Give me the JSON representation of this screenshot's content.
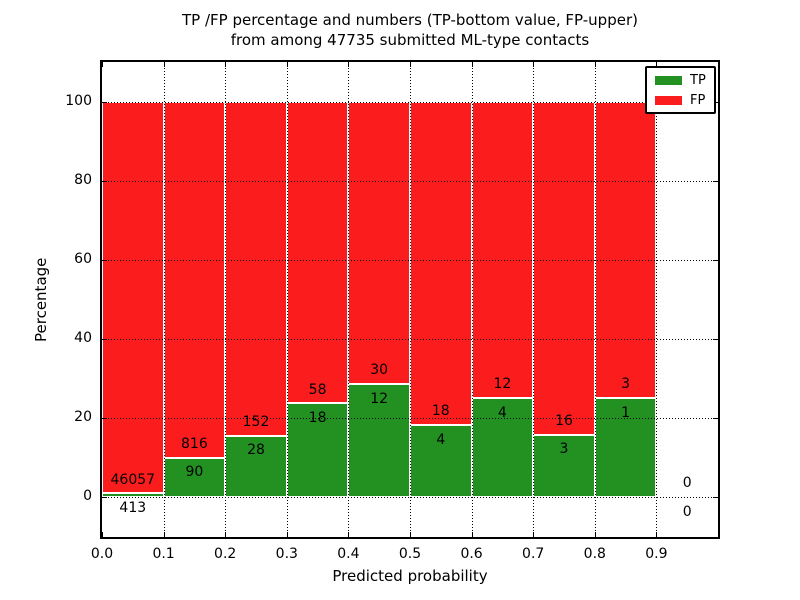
{
  "figure": {
    "title_line1": "TP /FP percentage and numbers (TP-bottom value, FP-upper)",
    "title_line2": "from among 47735 submitted ML-type contacts"
  },
  "chart_data": {
    "type": "bar",
    "stacked": true,
    "title": "TP /FP percentage and numbers (TP-bottom value, FP-upper) from among 47735 submitted ML-type contacts",
    "xlabel": "Predicted probability",
    "ylabel": "Percentage",
    "xlim": [
      0.0,
      1.0
    ],
    "ylim": [
      -10.6,
      110.6
    ],
    "xtick_labels": [
      "0.0",
      "0.1",
      "0.2",
      "0.3",
      "0.4",
      "0.5",
      "0.6",
      "0.7",
      "0.8",
      "0.9"
    ],
    "yticks": [
      0,
      20,
      40,
      60,
      80,
      100
    ],
    "grid": "dotted black, both axes, drawn over bars",
    "total_contacts": 47735,
    "bins": [
      {
        "x0": 0.0,
        "x1": 0.1,
        "tp": 413,
        "fp": 46057,
        "tp_pct": 0.89
      },
      {
        "x0": 0.1,
        "x1": 0.2,
        "tp": 90,
        "fp": 816,
        "tp_pct": 9.93
      },
      {
        "x0": 0.2,
        "x1": 0.3,
        "tp": 28,
        "fp": 152,
        "tp_pct": 15.56
      },
      {
        "x0": 0.3,
        "x1": 0.4,
        "tp": 18,
        "fp": 58,
        "tp_pct": 23.68
      },
      {
        "x0": 0.4,
        "x1": 0.5,
        "tp": 12,
        "fp": 30,
        "tp_pct": 28.57
      },
      {
        "x0": 0.5,
        "x1": 0.6,
        "tp": 4,
        "fp": 18,
        "tp_pct": 18.18
      },
      {
        "x0": 0.6,
        "x1": 0.7,
        "tp": 4,
        "fp": 12,
        "tp_pct": 25.0
      },
      {
        "x0": 0.7,
        "x1": 0.8,
        "tp": 3,
        "fp": 16,
        "tp_pct": 15.79
      },
      {
        "x0": 0.8,
        "x1": 0.9,
        "tp": 1,
        "fp": 3,
        "tp_pct": 25.0
      },
      {
        "x0": 0.9,
        "x1": 1.0,
        "tp": 0,
        "fp": 0,
        "tp_pct": null
      }
    ],
    "series": [
      {
        "name": "TP",
        "color": "#229122",
        "values_pct": [
          0.89,
          9.93,
          15.56,
          23.68,
          28.57,
          18.18,
          25.0,
          15.79,
          25.0,
          0
        ]
      },
      {
        "name": "FP",
        "color": "#fb1d1d",
        "values_pct": [
          99.11,
          90.07,
          84.44,
          76.32,
          71.43,
          81.82,
          75.0,
          84.21,
          75.0,
          0
        ]
      }
    ],
    "legend": {
      "position": "upper right",
      "entries": [
        {
          "label": "TP",
          "color": "#229122"
        },
        {
          "label": "FP",
          "color": "#fb1d1d"
        }
      ]
    }
  }
}
